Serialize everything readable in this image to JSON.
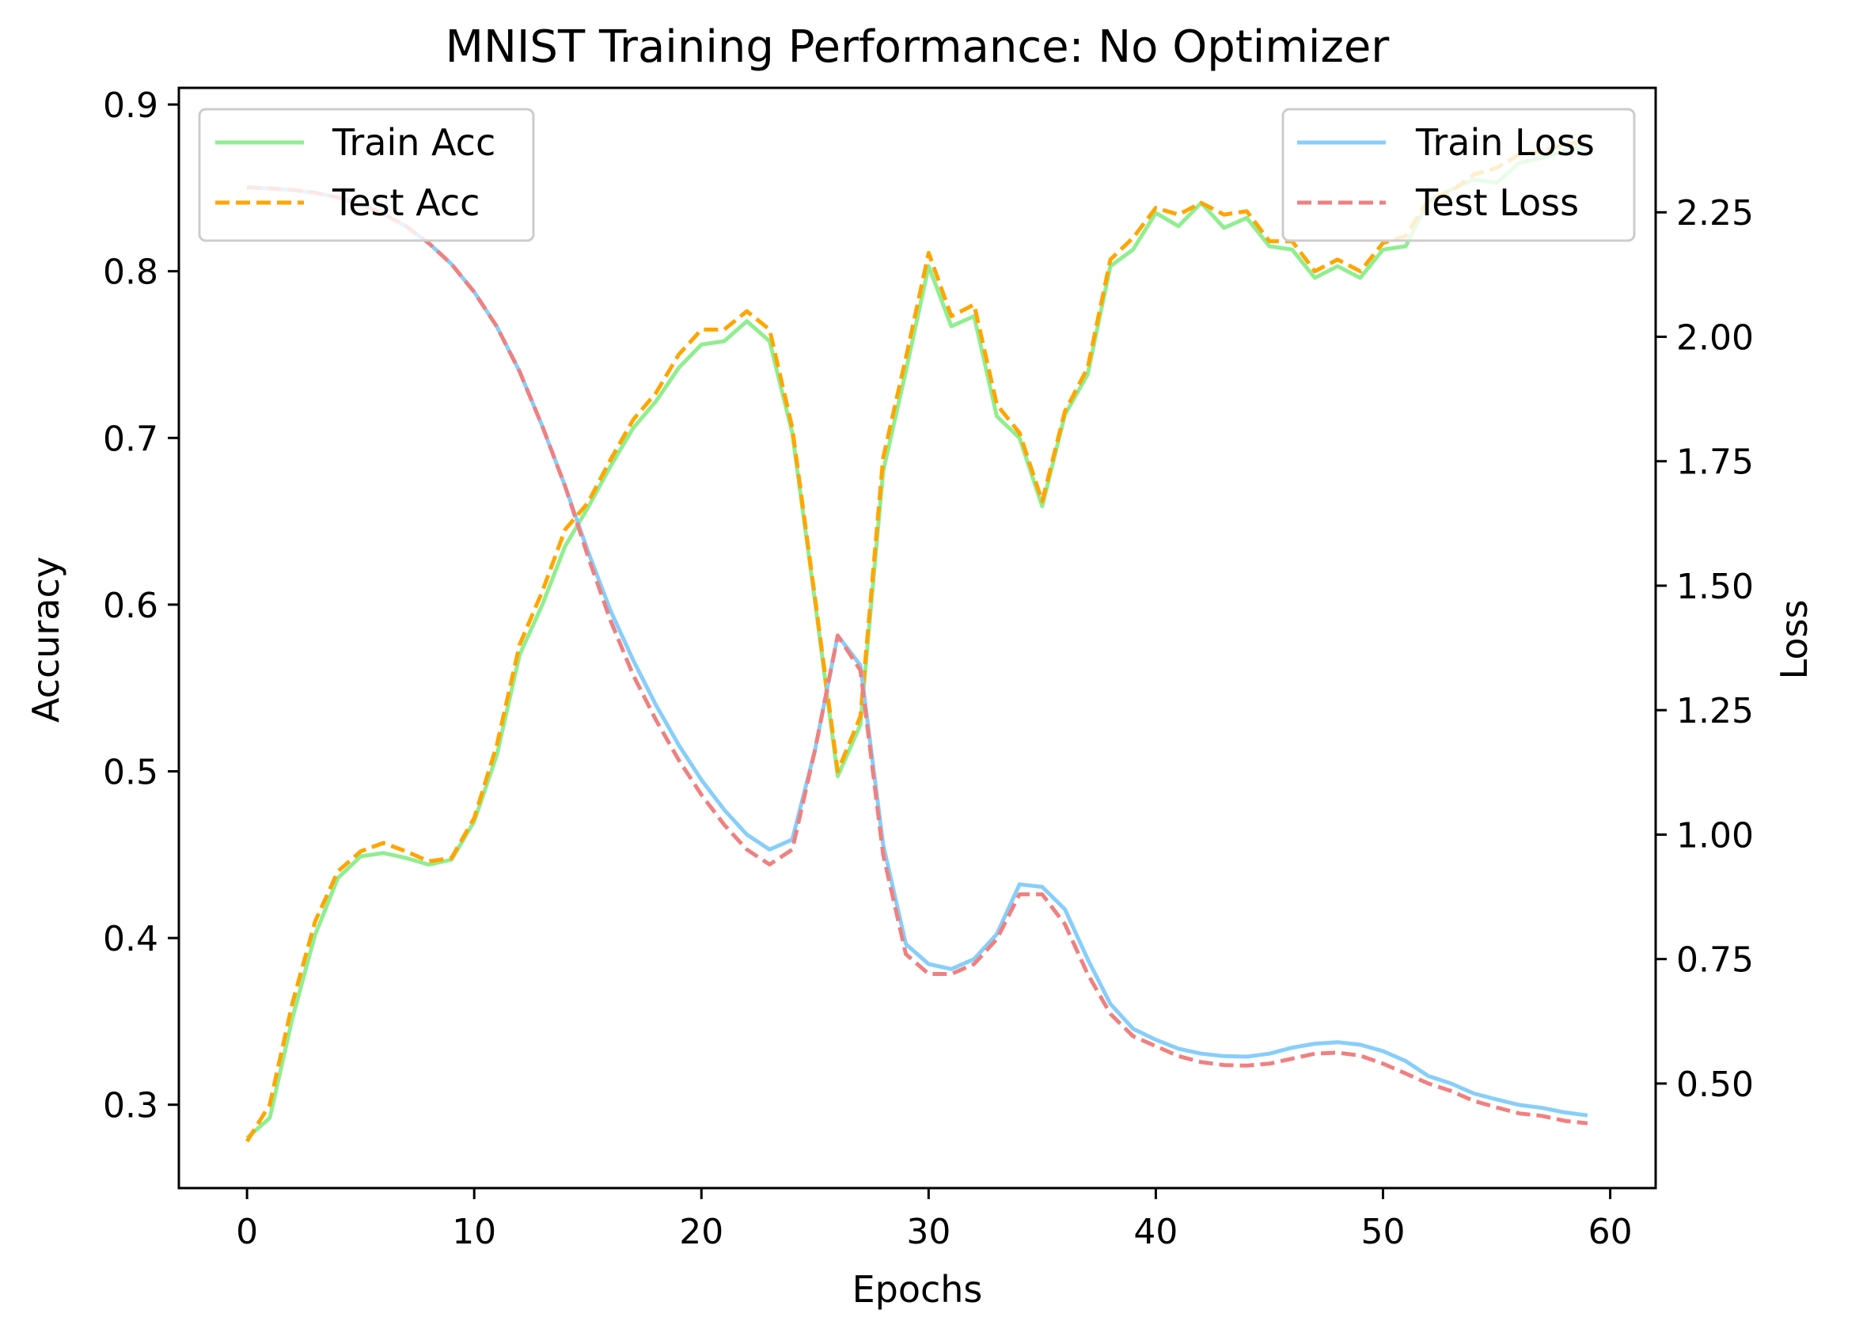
{
  "chart_data": {
    "type": "line",
    "title": "MNIST Training Performance: No Optimizer",
    "xlabel": "Epochs",
    "ylabel": "Accuracy",
    "y2label": "Loss",
    "xlim": [
      -3,
      62
    ],
    "ylim": [
      0.25,
      0.91
    ],
    "y2lim": [
      0.29,
      2.5
    ],
    "xticks": [
      "0",
      "10",
      "20",
      "30",
      "40",
      "50",
      "60"
    ],
    "yticks": [
      "0.3",
      "0.4",
      "0.5",
      "0.6",
      "0.7",
      "0.8",
      "0.9"
    ],
    "y2ticks": [
      "0.50",
      "0.75",
      "1.00",
      "1.25",
      "1.50",
      "1.75",
      "2.00",
      "2.25"
    ],
    "grid": false,
    "legend_left": {
      "placement": "top-left",
      "entries": [
        "Train Acc",
        "Test Acc"
      ]
    },
    "legend_right": {
      "placement": "top-right",
      "entries": [
        "Train Loss",
        "Test Loss"
      ]
    },
    "colors": {
      "train_acc": "#90EE90",
      "test_acc": "#FFA500",
      "train_loss": "#87CEFA",
      "test_loss": "#F08080"
    },
    "x": [
      0,
      1,
      2,
      3,
      4,
      5,
      6,
      7,
      8,
      9,
      10,
      11,
      12,
      13,
      14,
      15,
      16,
      17,
      18,
      19,
      20,
      21,
      22,
      23,
      24,
      25,
      26,
      27,
      28,
      29,
      30,
      31,
      32,
      33,
      34,
      35,
      36,
      37,
      38,
      39,
      40,
      41,
      42,
      43,
      44,
      45,
      46,
      47,
      48,
      49,
      50,
      51,
      52,
      53,
      54,
      55,
      56,
      57,
      58,
      59
    ],
    "series": [
      {
        "name": "Train Acc",
        "axis": "left",
        "style": "solid",
        "values": [
          0.28,
          0.292,
          0.352,
          0.402,
          0.436,
          0.449,
          0.451,
          0.448,
          0.444,
          0.447,
          0.47,
          0.51,
          0.57,
          0.6,
          0.635,
          0.658,
          0.683,
          0.706,
          0.722,
          0.742,
          0.756,
          0.758,
          0.77,
          0.758,
          0.703,
          0.602,
          0.497,
          0.528,
          0.68,
          0.74,
          0.803,
          0.767,
          0.773,
          0.713,
          0.7,
          0.659,
          0.714,
          0.738,
          0.803,
          0.813,
          0.835,
          0.827,
          0.841,
          0.826,
          0.832,
          0.815,
          0.813,
          0.796,
          0.803,
          0.796,
          0.813,
          0.815,
          0.842,
          0.849,
          0.855,
          0.853,
          0.865,
          0.868,
          0.872,
          0.875
        ]
      },
      {
        "name": "Test Acc",
        "axis": "left",
        "style": "dashed",
        "values": [
          0.278,
          0.3,
          0.361,
          0.41,
          0.44,
          0.452,
          0.457,
          0.452,
          0.446,
          0.448,
          0.472,
          0.516,
          0.576,
          0.608,
          0.645,
          0.661,
          0.687,
          0.711,
          0.727,
          0.75,
          0.765,
          0.765,
          0.776,
          0.765,
          0.706,
          0.604,
          0.5,
          0.533,
          0.688,
          0.748,
          0.811,
          0.773,
          0.78,
          0.72,
          0.703,
          0.662,
          0.716,
          0.742,
          0.807,
          0.82,
          0.838,
          0.834,
          0.841,
          0.834,
          0.836,
          0.818,
          0.818,
          0.8,
          0.807,
          0.8,
          0.817,
          0.821,
          0.843,
          0.848,
          0.858,
          0.862,
          0.87,
          0.872,
          0.876,
          0.878
        ]
      },
      {
        "name": "Train Loss",
        "axis": "right",
        "style": "solid",
        "values": [
          2.3,
          2.298,
          2.295,
          2.289,
          2.28,
          2.266,
          2.247,
          2.222,
          2.188,
          2.146,
          2.09,
          2.02,
          1.93,
          1.82,
          1.7,
          1.57,
          1.45,
          1.35,
          1.26,
          1.18,
          1.11,
          1.05,
          1.0,
          0.97,
          0.99,
          1.17,
          1.4,
          1.34,
          0.98,
          0.78,
          0.74,
          0.73,
          0.75,
          0.8,
          0.9,
          0.895,
          0.85,
          0.75,
          0.66,
          0.61,
          0.588,
          0.57,
          0.56,
          0.555,
          0.554,
          0.56,
          0.572,
          0.58,
          0.583,
          0.578,
          0.565,
          0.545,
          0.515,
          0.5,
          0.48,
          0.468,
          0.457,
          0.451,
          0.442,
          0.436
        ]
      },
      {
        "name": "Test Loss",
        "axis": "right",
        "style": "dashed",
        "values": [
          2.3,
          2.298,
          2.295,
          2.289,
          2.28,
          2.266,
          2.247,
          2.222,
          2.188,
          2.146,
          2.09,
          2.02,
          1.93,
          1.82,
          1.7,
          1.56,
          1.43,
          1.32,
          1.23,
          1.15,
          1.08,
          1.02,
          0.97,
          0.94,
          0.97,
          1.17,
          1.4,
          1.33,
          0.96,
          0.76,
          0.72,
          0.72,
          0.74,
          0.79,
          0.88,
          0.88,
          0.82,
          0.72,
          0.64,
          0.595,
          0.575,
          0.555,
          0.543,
          0.537,
          0.536,
          0.54,
          0.55,
          0.56,
          0.562,
          0.556,
          0.54,
          0.52,
          0.5,
          0.485,
          0.465,
          0.452,
          0.44,
          0.435,
          0.425,
          0.42
        ]
      }
    ]
  }
}
